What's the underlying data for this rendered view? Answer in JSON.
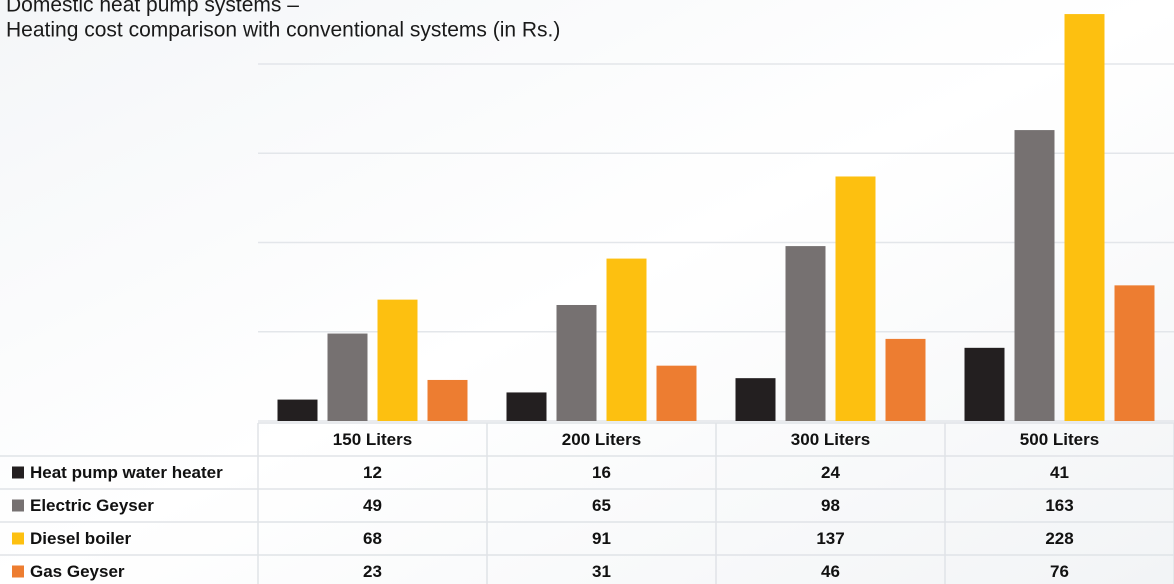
{
  "chart_data": {
    "type": "bar",
    "title": "Domestic heat pump systems –",
    "subtitle": "Heating cost comparison with conventional systems (in Rs.)",
    "categories": [
      "150 Liters",
      "200 Liters",
      "300 Liters",
      "500 Liters"
    ],
    "series": [
      {
        "name": "Heat pump water heater",
        "color": "#231f20",
        "values": [
          12,
          16,
          24,
          41
        ]
      },
      {
        "name": "Electric Geyser",
        "color": "#767171",
        "values": [
          49,
          65,
          98,
          163
        ]
      },
      {
        "name": "Diesel boiler",
        "color": "#fdc010",
        "values": [
          68,
          91,
          137,
          228
        ]
      },
      {
        "name": "Gas Geyser",
        "color": "#ed7d31",
        "values": [
          23,
          31,
          46,
          76
        ]
      }
    ],
    "ylim": [
      0,
      230
    ],
    "yticks": [
      0,
      50,
      100,
      150,
      200
    ],
    "grid": true
  }
}
